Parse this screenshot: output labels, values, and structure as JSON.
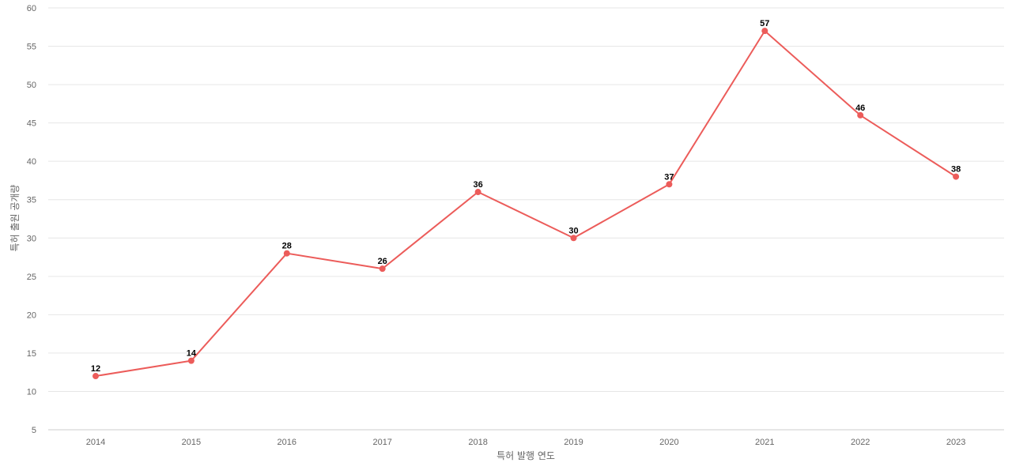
{
  "chart_data": {
    "type": "line",
    "title": "",
    "xlabel": "특허 발행 연도",
    "ylabel": "특허 출원 공개량",
    "categories": [
      "2014",
      "2015",
      "2016",
      "2017",
      "2018",
      "2019",
      "2020",
      "2021",
      "2022",
      "2023"
    ],
    "series": [
      {
        "values": [
          12,
          14,
          28,
          26,
          36,
          30,
          37,
          57,
          46,
          38
        ]
      }
    ],
    "ylim": [
      5,
      60
    ],
    "yticks": [
      5,
      10,
      15,
      20,
      25,
      30,
      35,
      40,
      45,
      50,
      55,
      60
    ],
    "grid": true,
    "data_labels": true,
    "colors": {
      "line": "#ec5c5a",
      "grid": "#e6e6e6",
      "tick_text": "#666666",
      "label_text": "#000000"
    }
  }
}
